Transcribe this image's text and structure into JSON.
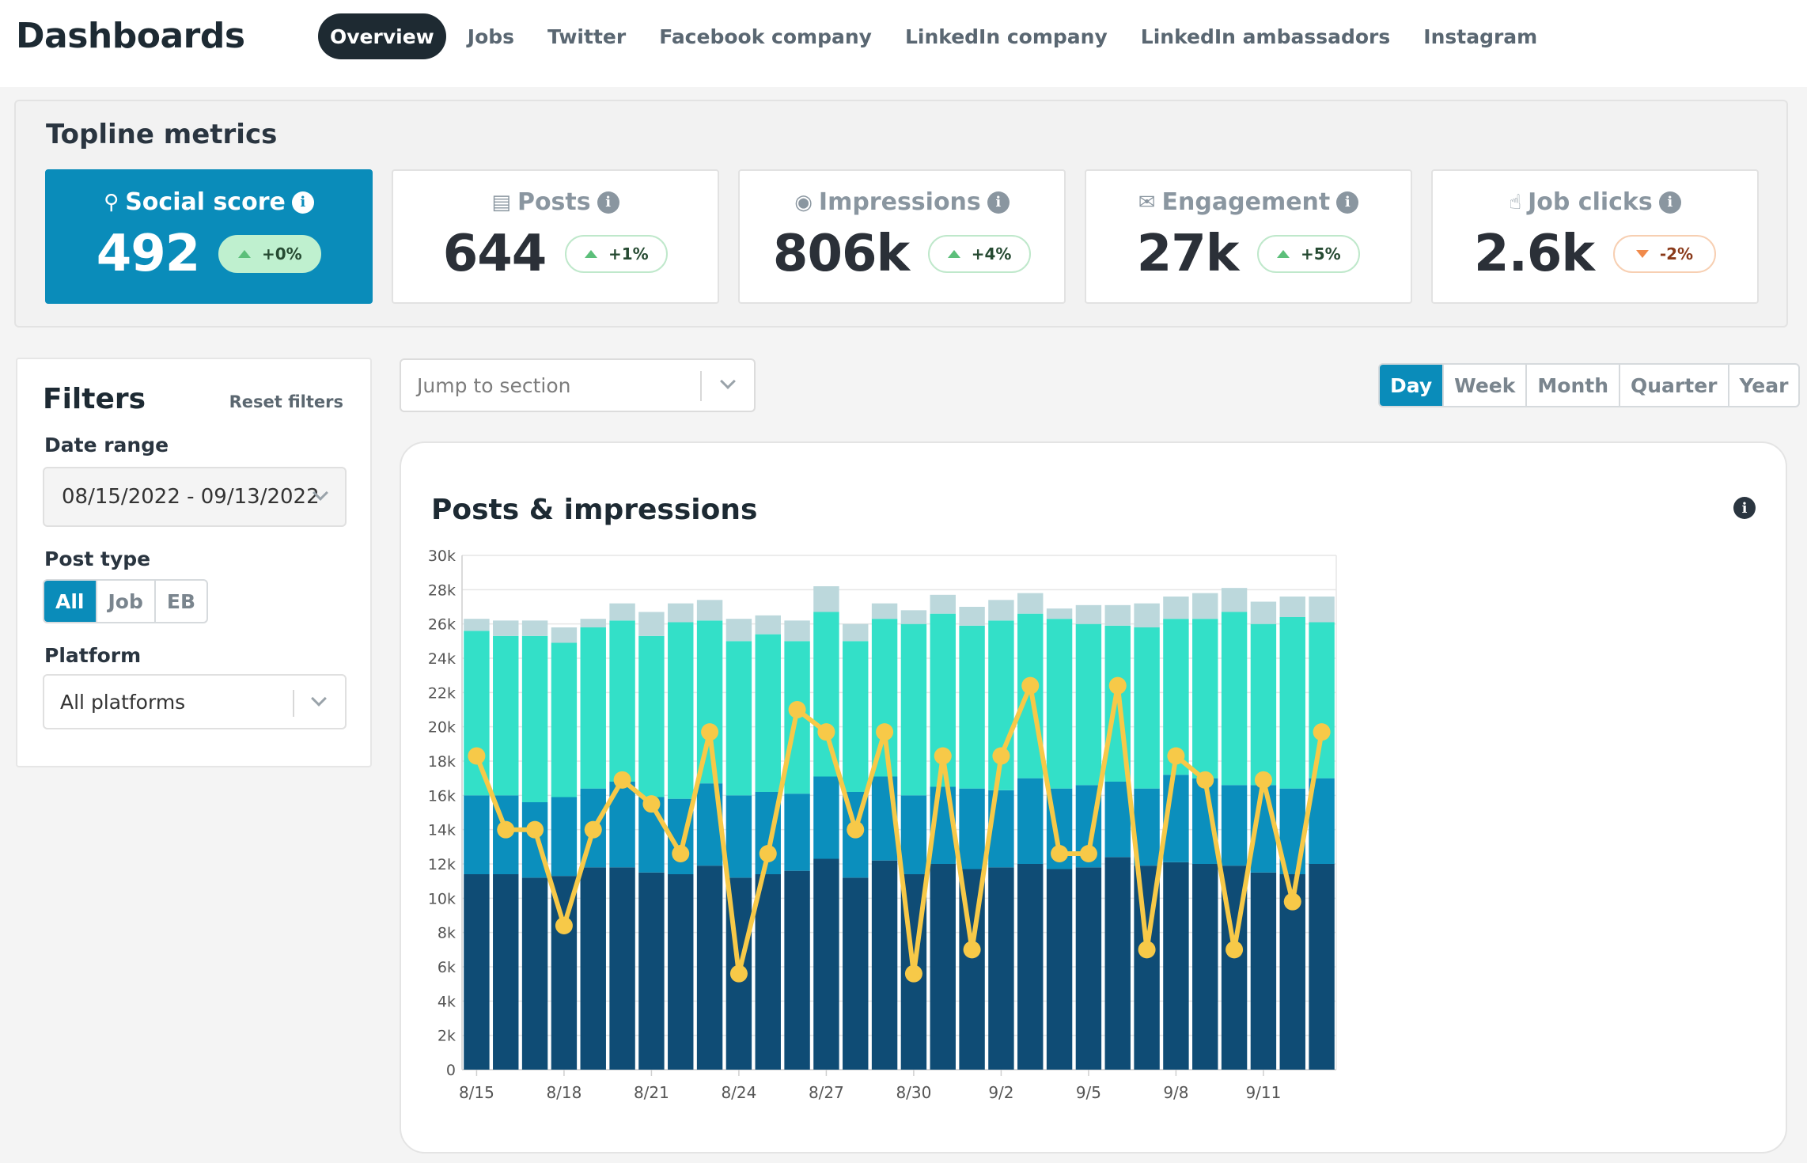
{
  "header": {
    "brand": "Dashboards",
    "tabs": [
      {
        "label": "Overview",
        "active": true
      },
      {
        "label": "Jobs",
        "active": false
      },
      {
        "label": "Twitter",
        "active": false
      },
      {
        "label": "Facebook company",
        "active": false
      },
      {
        "label": "LinkedIn company",
        "active": false
      },
      {
        "label": "LinkedIn ambassadors",
        "active": false
      },
      {
        "label": "Instagram",
        "active": false
      }
    ]
  },
  "topline": {
    "title": "Topline metrics",
    "cards": [
      {
        "label": "Social score",
        "value": "492",
        "change": "+0%",
        "direction": "up",
        "icon": "award-icon"
      },
      {
        "label": "Posts",
        "value": "644",
        "change": "+1%",
        "direction": "up",
        "icon": "newspaper-icon"
      },
      {
        "label": "Impressions",
        "value": "806k",
        "change": "+4%",
        "direction": "up",
        "icon": "eye-icon"
      },
      {
        "label": "Engagement",
        "value": "27k",
        "change": "+5%",
        "direction": "up",
        "icon": "comments-icon"
      },
      {
        "label": "Job clicks",
        "value": "2.6k",
        "change": "-2%",
        "direction": "down",
        "icon": "pointer-hand-icon"
      }
    ]
  },
  "filters": {
    "title": "Filters",
    "reset_label": "Reset filters",
    "date_range_label": "Date range",
    "date_range_value": "08/15/2022 - 09/13/2022",
    "post_type_label": "Post type",
    "post_types": [
      {
        "label": "All",
        "active": true
      },
      {
        "label": "Job",
        "active": false
      },
      {
        "label": "EB",
        "active": false
      }
    ],
    "platform_label": "Platform",
    "platform_value": "All platforms"
  },
  "jump": {
    "placeholder": "Jump to section"
  },
  "period": [
    {
      "label": "Day",
      "active": true
    },
    {
      "label": "Week",
      "active": false
    },
    {
      "label": "Month",
      "active": false
    },
    {
      "label": "Quarter",
      "active": false
    },
    {
      "label": "Year",
      "active": false
    }
  ],
  "colors": {
    "accent": "#0a8cba",
    "series1": "#0f4c75",
    "series2": "#0b8fbd",
    "series3": "#33e0c8",
    "series4": "#bcd8dc",
    "line": "#f7c948"
  },
  "chart_data": {
    "type": "bar",
    "title": "Posts & impressions",
    "stacked": true,
    "ylim": [
      0,
      30000
    ],
    "yticks": [
      0,
      2000,
      4000,
      6000,
      8000,
      10000,
      12000,
      14000,
      16000,
      18000,
      20000,
      22000,
      24000,
      26000,
      28000,
      30000
    ],
    "ytick_labels": [
      "0",
      "2k",
      "4k",
      "6k",
      "8k",
      "10k",
      "12k",
      "14k",
      "16k",
      "18k",
      "20k",
      "22k",
      "24k",
      "26k",
      "28k",
      "30k"
    ],
    "categories": [
      "8/15",
      "8/16",
      "8/17",
      "8/18",
      "8/19",
      "8/20",
      "8/21",
      "8/22",
      "8/23",
      "8/24",
      "8/25",
      "8/26",
      "8/27",
      "8/28",
      "8/29",
      "8/30",
      "8/31",
      "9/1",
      "9/2",
      "9/3",
      "9/4",
      "9/5",
      "9/6",
      "9/7",
      "9/8",
      "9/9",
      "9/10",
      "9/11",
      "9/12",
      "9/13"
    ],
    "xtick_labels": [
      "8/15",
      "",
      "",
      "8/18",
      "",
      "",
      "8/21",
      "",
      "",
      "8/24",
      "",
      "",
      "8/27",
      "",
      "",
      "8/30",
      "",
      "",
      "9/2",
      "",
      "",
      "9/5",
      "",
      "",
      "9/8",
      "",
      "",
      "9/11",
      "",
      ""
    ],
    "series": [
      {
        "values": [
          11400,
          11400,
          11200,
          11300,
          11800,
          11800,
          11500,
          11400,
          11900,
          11200,
          11400,
          11600,
          12300,
          11200,
          12200,
          11400,
          12000,
          11700,
          11800,
          12000,
          11700,
          11800,
          12400,
          11900,
          12100,
          12000,
          11900,
          11500,
          11400,
          12000
        ]
      },
      {
        "values": [
          4600,
          4600,
          4400,
          4600,
          4600,
          5000,
          4400,
          4400,
          4800,
          4800,
          4800,
          4500,
          4800,
          5000,
          4900,
          4600,
          4500,
          4700,
          4500,
          5000,
          4700,
          4800,
          4400,
          4500,
          5100,
          5000,
          4700,
          5100,
          5000,
          5000
        ]
      },
      {
        "values": [
          9600,
          9300,
          9700,
          9000,
          9400,
          9400,
          9400,
          10300,
          9500,
          9000,
          9200,
          8900,
          9600,
          8800,
          9200,
          10000,
          10100,
          9500,
          9900,
          9600,
          9900,
          9400,
          9100,
          9400,
          9100,
          9300,
          10100,
          9400,
          10000,
          9100
        ]
      },
      {
        "values": [
          700,
          900,
          900,
          900,
          500,
          1000,
          1400,
          1100,
          1200,
          1300,
          1100,
          1200,
          1500,
          1000,
          900,
          800,
          1100,
          1100,
          1200,
          1200,
          600,
          1100,
          1200,
          1400,
          1300,
          1500,
          1400,
          1300,
          1200,
          1500
        ]
      }
    ],
    "line_series": {
      "values": [
        18300,
        14000,
        14000,
        8400,
        14000,
        16900,
        15500,
        12600,
        19700,
        5600,
        12600,
        21000,
        19700,
        14000,
        19700,
        5600,
        18300,
        7000,
        18300,
        22400,
        12600,
        12600,
        22400,
        7000,
        18300,
        16900,
        7000,
        16900,
        9800,
        19700
      ]
    }
  }
}
